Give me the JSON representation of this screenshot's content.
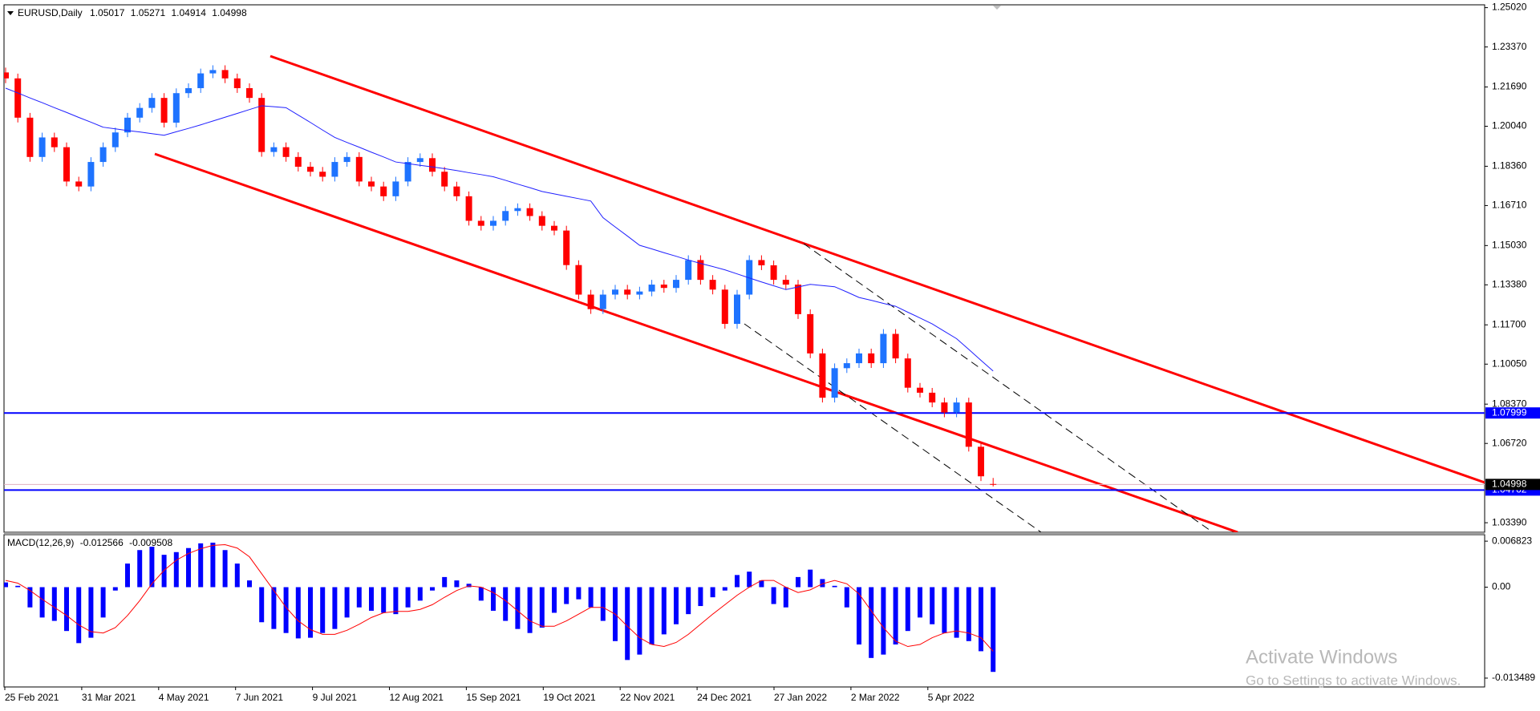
{
  "chart_data": {
    "type": "candlestick",
    "title": "EURUSD,Daily",
    "up_color": "#1e73ff",
    "down_color": "#ff0000",
    "candles": {
      "open": [
        1.223,
        1.2205,
        1.204,
        1.1875,
        1.1957,
        1.1916,
        1.1772,
        1.1751,
        1.1854,
        1.1916,
        1.1978,
        1.204,
        1.2081,
        1.2123,
        1.2019,
        1.2143,
        1.2164,
        1.2226,
        1.224,
        1.2205,
        1.2164,
        1.2123,
        1.1896,
        1.1916,
        1.1875,
        1.1834,
        1.1813,
        1.1792,
        1.1854,
        1.1875,
        1.1772,
        1.1751,
        1.171,
        1.1772,
        1.1854,
        1.187,
        1.1813,
        1.1751,
        1.171,
        1.1607,
        1.1586,
        1.1607,
        1.1648,
        1.166,
        1.1627,
        1.1586,
        1.1566,
        1.1421,
        1.1297,
        1.1236,
        1.1297,
        1.1318,
        1.1297,
        1.131,
        1.1339,
        1.1325,
        1.1359,
        1.1442,
        1.1359,
        1.1318,
        1.1174,
        1.1297,
        1.1442,
        1.142,
        1.1359,
        1.1339,
        1.1215,
        1.105,
        1.0864,
        1.0988,
        1.1009,
        1.105,
        1.1009,
        1.1132,
        1.1029,
        1.0906,
        1.0885,
        1.0844,
        1.0802,
        1.0844,
        1.0658,
        1.05017
      ],
      "high": [
        1.225,
        1.2225,
        1.206,
        1.1977,
        1.1977,
        1.1936,
        1.1792,
        1.1874,
        1.1936,
        1.1998,
        1.206,
        1.2101,
        1.2143,
        1.2143,
        1.2163,
        1.2184,
        1.2246,
        1.226,
        1.226,
        1.2225,
        1.2184,
        1.2143,
        1.1936,
        1.1936,
        1.1895,
        1.1854,
        1.1833,
        1.1874,
        1.1895,
        1.1895,
        1.1792,
        1.1771,
        1.1792,
        1.1874,
        1.189,
        1.189,
        1.1833,
        1.1771,
        1.173,
        1.1627,
        1.1627,
        1.1668,
        1.168,
        1.168,
        1.1647,
        1.1606,
        1.1586,
        1.1441,
        1.1317,
        1.1317,
        1.1338,
        1.1338,
        1.133,
        1.1359,
        1.1359,
        1.1379,
        1.1462,
        1.1462,
        1.1379,
        1.1338,
        1.1317,
        1.1462,
        1.1462,
        1.144,
        1.1379,
        1.1359,
        1.1235,
        1.107,
        1.1008,
        1.1029,
        1.107,
        1.107,
        1.1152,
        1.1152,
        1.1049,
        1.0926,
        1.0905,
        1.0864,
        1.0864,
        1.0864,
        1.0678,
        1.05271
      ],
      "low": [
        1.2185,
        1.202,
        1.1855,
        1.1855,
        1.1896,
        1.1752,
        1.1731,
        1.1731,
        1.1834,
        1.1896,
        1.1958,
        1.202,
        1.2061,
        1.1999,
        1.1999,
        1.2123,
        1.2144,
        1.2206,
        1.2185,
        1.2144,
        1.2103,
        1.1876,
        1.1876,
        1.1855,
        1.1814,
        1.1793,
        1.1772,
        1.1772,
        1.1834,
        1.1752,
        1.1731,
        1.169,
        1.169,
        1.1752,
        1.1834,
        1.1793,
        1.1731,
        1.169,
        1.1587,
        1.1566,
        1.1566,
        1.1587,
        1.1628,
        1.1607,
        1.1566,
        1.1546,
        1.1401,
        1.1277,
        1.1216,
        1.1216,
        1.1277,
        1.1277,
        1.1277,
        1.129,
        1.1305,
        1.1305,
        1.1339,
        1.1339,
        1.1298,
        1.1154,
        1.1154,
        1.1277,
        1.14,
        1.1339,
        1.1319,
        1.1195,
        1.103,
        1.0844,
        1.0844,
        1.0968,
        1.0989,
        1.0989,
        1.0989,
        1.1009,
        1.0886,
        1.0865,
        1.0824,
        1.0782,
        1.0782,
        1.0638,
        1.0514,
        1.04914
      ],
      "close": [
        1.2205,
        1.204,
        1.1875,
        1.1957,
        1.1916,
        1.1772,
        1.1751,
        1.1854,
        1.1916,
        1.1978,
        1.204,
        1.2081,
        1.2123,
        1.2019,
        1.2143,
        1.2164,
        1.2226,
        1.224,
        1.2205,
        1.2164,
        1.2123,
        1.1896,
        1.1916,
        1.1875,
        1.1834,
        1.1813,
        1.1792,
        1.1854,
        1.1875,
        1.1772,
        1.1751,
        1.171,
        1.1772,
        1.1854,
        1.187,
        1.1813,
        1.1751,
        1.171,
        1.1607,
        1.1586,
        1.1607,
        1.1648,
        1.166,
        1.1627,
        1.1586,
        1.1566,
        1.1421,
        1.1297,
        1.1236,
        1.1297,
        1.1318,
        1.1297,
        1.131,
        1.1339,
        1.1325,
        1.1359,
        1.1442,
        1.1359,
        1.1318,
        1.1174,
        1.1297,
        1.1442,
        1.142,
        1.1359,
        1.1339,
        1.1215,
        1.105,
        1.0864,
        1.0988,
        1.1009,
        1.105,
        1.1009,
        1.1132,
        1.1029,
        1.0906,
        1.0885,
        1.0844,
        1.0802,
        1.0844,
        1.0658,
        1.0534,
        1.04998
      ]
    },
    "ma": {
      "color": "#2020ff",
      "values": [
        1.2164,
        1.2144,
        1.2123,
        1.2103,
        1.2082,
        1.2062,
        1.2041,
        1.2021,
        1.2,
        1.1993,
        1.1986,
        1.198,
        1.1973,
        1.1966,
        1.1981,
        1.1995,
        1.201,
        1.2026,
        1.2042,
        1.2058,
        1.2074,
        1.209,
        1.2086,
        1.2082,
        1.2051,
        1.202,
        1.1988,
        1.1957,
        1.1936,
        1.1916,
        1.1895,
        1.1875,
        1.1854,
        1.1847,
        1.184,
        1.1833,
        1.1826,
        1.1818,
        1.1809,
        1.1801,
        1.1792,
        1.1777,
        1.1761,
        1.1746,
        1.173,
        1.172,
        1.171,
        1.17,
        1.169,
        1.162,
        1.1581,
        1.1543,
        1.1504,
        1.1489,
        1.1473,
        1.1458,
        1.1442,
        1.1428,
        1.1415,
        1.1401,
        1.1384,
        1.1367,
        1.135,
        1.1334,
        1.1318,
        1.1329,
        1.134,
        1.1335,
        1.133,
        1.1308,
        1.1285,
        1.1273,
        1.126,
        1.1248,
        1.1223,
        1.1199,
        1.1174,
        1.1143,
        1.1112,
        1.1067,
        1.1021,
        1.0976
      ]
    },
    "ylim": [
      1.0299,
      1.2514
    ],
    "yticks": [
      {
        "value": 1.2502,
        "label": "1.25020"
      },
      {
        "value": 1.2337,
        "label": "1.23370"
      },
      {
        "value": 1.2169,
        "label": "1.21690"
      },
      {
        "value": 1.2004,
        "label": "1.20040"
      },
      {
        "value": 1.1836,
        "label": "1.18360"
      },
      {
        "value": 1.1671,
        "label": "1.16710"
      },
      {
        "value": 1.1503,
        "label": "1.15030"
      },
      {
        "value": 1.1338,
        "label": "1.13380"
      },
      {
        "value": 1.117,
        "label": "1.11700"
      },
      {
        "value": 1.1005,
        "label": "1.10050"
      },
      {
        "value": 1.0837,
        "label": "1.08370"
      },
      {
        "value": 1.0672,
        "label": "1.06720"
      },
      {
        "value": 1.0339,
        "label": "1.03390"
      }
    ],
    "hlines": [
      {
        "value": 1.07999,
        "color": "#0000ff"
      },
      {
        "value": 1.04762,
        "color": "#0000ff"
      }
    ],
    "date_labels": [
      "25 Feb 2021",
      "31 Mar 2021",
      "4 May 2021",
      "7 Jun 2021",
      "9 Jul 2021",
      "12 Aug 2021",
      "15 Sep 2021",
      "19 Oct 2021",
      "22 Nov 2021",
      "24 Dec 2021",
      "27 Jan 2022",
      "2 Mar 2022",
      "5 Apr 2022"
    ],
    "macd": {
      "title": "MACD(12,26,9)",
      "color": "#0000ff",
      "signal_color": "#ff0000",
      "histogram": [
        0.0007,
        0.0002,
        -0.003,
        -0.0045,
        -0.005,
        -0.0065,
        -0.0083,
        -0.0075,
        -0.0045,
        -0.0005,
        0.0035,
        0.0055,
        0.006,
        0.0048,
        0.0052,
        0.0058,
        0.0065,
        0.0066,
        0.0055,
        0.0035,
        0.001,
        -0.0052,
        -0.0062,
        -0.0068,
        -0.0076,
        -0.0075,
        -0.0068,
        -0.0062,
        -0.0045,
        -0.003,
        -0.0035,
        -0.0038,
        -0.004,
        -0.003,
        -0.002,
        -0.0005,
        0.0015,
        0.001,
        0.0005,
        -0.002,
        -0.0035,
        -0.005,
        -0.0062,
        -0.0068,
        -0.006,
        -0.0038,
        -0.0025,
        -0.0018,
        -0.003,
        -0.005,
        -0.008,
        -0.0108,
        -0.01,
        -0.0085,
        -0.007,
        -0.0055,
        -0.004,
        -0.0028,
        -0.0015,
        -0.0005,
        0.0018,
        0.0023,
        0.001,
        -0.0025,
        -0.003,
        0.0015,
        0.0026,
        0.0012,
        0.0002,
        -0.003,
        -0.0085,
        -0.0105,
        -0.01,
        -0.0085,
        -0.0065,
        -0.0045,
        -0.0055,
        -0.0068,
        -0.0075,
        -0.008,
        -0.0095,
        -0.012566
      ],
      "signal": [
        0.001,
        0.0006,
        -0.0005,
        -0.0018,
        -0.003,
        -0.0042,
        -0.0056,
        -0.0066,
        -0.0068,
        -0.006,
        -0.0042,
        -0.002,
        0.0005,
        0.0025,
        0.004,
        0.005,
        0.0057,
        0.0062,
        0.0063,
        0.0058,
        0.0045,
        0.002,
        -0.0005,
        -0.003,
        -0.005,
        -0.0063,
        -0.007,
        -0.007,
        -0.0064,
        -0.0055,
        -0.0045,
        -0.0038,
        -0.0036,
        -0.0036,
        -0.0033,
        -0.0026,
        -0.0015,
        -0.0005,
        0.0002,
        0.0,
        -0.0008,
        -0.002,
        -0.0035,
        -0.005,
        -0.0058,
        -0.0058,
        -0.005,
        -0.004,
        -0.003,
        -0.003,
        -0.004,
        -0.0058,
        -0.0075,
        -0.0085,
        -0.0088,
        -0.0082,
        -0.007,
        -0.0055,
        -0.004,
        -0.0026,
        -0.0012,
        0.0,
        0.001,
        0.001,
        0.0,
        -0.0008,
        -0.0004,
        0.0005,
        0.001,
        0.0005,
        -0.001,
        -0.0035,
        -0.006,
        -0.008,
        -0.0088,
        -0.0085,
        -0.0075,
        -0.0068,
        -0.0065,
        -0.0068,
        -0.0075,
        -0.009508
      ],
      "y2lim": [
        -0.0148,
        0.00755
      ],
      "y2ticks": [
        0.006823,
        {
          "value": 0,
          "label": "0.00"
        },
        -0.013489
      ]
    },
    "watermark": {
      "title": "Activate Windows",
      "subtitle": "Go to Settings to activate Windows."
    }
  }
}
